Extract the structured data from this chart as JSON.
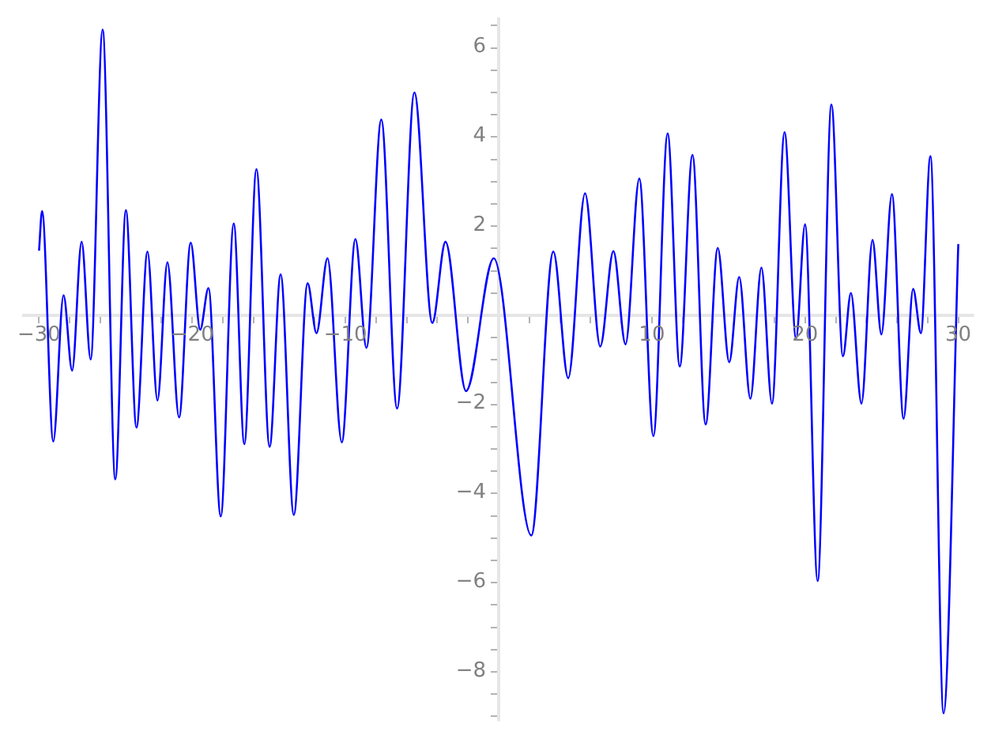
{
  "chart_data": {
    "type": "line",
    "color": "#0000ff",
    "marker": "none",
    "line_style": "solid",
    "grid": false,
    "legend": false,
    "xlim": [
      -31,
      31
    ],
    "ylim": [
      -9.1,
      6.65
    ],
    "xticks": [
      {
        "value": -30,
        "label": "−30"
      },
      {
        "value": -28,
        "label": null
      },
      {
        "value": -26,
        "label": null
      },
      {
        "value": -24,
        "label": null
      },
      {
        "value": -22,
        "label": null
      },
      {
        "value": -20,
        "label": "−20"
      },
      {
        "value": -18,
        "label": null
      },
      {
        "value": -16,
        "label": null
      },
      {
        "value": -14,
        "label": null
      },
      {
        "value": -12,
        "label": null
      },
      {
        "value": -10,
        "label": "−10"
      },
      {
        "value": -8,
        "label": null
      },
      {
        "value": -6,
        "label": null
      },
      {
        "value": -4,
        "label": null
      },
      {
        "value": -2,
        "label": null
      },
      {
        "value": 0,
        "label": null
      },
      {
        "value": 2,
        "label": null
      },
      {
        "value": 4,
        "label": null
      },
      {
        "value": 6,
        "label": null
      },
      {
        "value": 8,
        "label": null
      },
      {
        "value": 10,
        "label": "10"
      },
      {
        "value": 12,
        "label": null
      },
      {
        "value": 14,
        "label": null
      },
      {
        "value": 16,
        "label": null
      },
      {
        "value": 18,
        "label": null
      },
      {
        "value": 20,
        "label": "20"
      },
      {
        "value": 22,
        "label": null
      },
      {
        "value": 24,
        "label": null
      },
      {
        "value": 26,
        "label": null
      },
      {
        "value": 28,
        "label": null
      },
      {
        "value": 30,
        "label": "30"
      }
    ],
    "yticks": [
      {
        "value": -9,
        "label": null
      },
      {
        "value": -8.5,
        "label": null
      },
      {
        "value": -8,
        "label": "−8"
      },
      {
        "value": -7.5,
        "label": null
      },
      {
        "value": -7,
        "label": null
      },
      {
        "value": -6.5,
        "label": null
      },
      {
        "value": -6,
        "label": "−6"
      },
      {
        "value": -5.5,
        "label": null
      },
      {
        "value": -5,
        "label": null
      },
      {
        "value": -4.5,
        "label": null
      },
      {
        "value": -4,
        "label": "−4"
      },
      {
        "value": -3.5,
        "label": null
      },
      {
        "value": -3,
        "label": null
      },
      {
        "value": -2.5,
        "label": null
      },
      {
        "value": -2,
        "label": "−2"
      },
      {
        "value": -1.5,
        "label": null
      },
      {
        "value": -1,
        "label": null
      },
      {
        "value": -0.5,
        "label": null
      },
      {
        "value": 0,
        "label": null
      },
      {
        "value": 0.5,
        "label": null
      },
      {
        "value": 1,
        "label": null
      },
      {
        "value": 1.5,
        "label": null
      },
      {
        "value": 2,
        "label": "2"
      },
      {
        "value": 2.5,
        "label": null
      },
      {
        "value": 3,
        "label": null
      },
      {
        "value": 3.5,
        "label": null
      },
      {
        "value": 4,
        "label": "4"
      },
      {
        "value": 4.5,
        "label": null
      },
      {
        "value": 5,
        "label": null
      },
      {
        "value": 5.5,
        "label": null
      },
      {
        "value": 6,
        "label": "6"
      },
      {
        "value": 6.5,
        "label": null
      }
    ],
    "x": [
      -30,
      -29.8,
      -29.07,
      -28.4,
      -27.84,
      -27.22,
      -26.63,
      -25.85,
      -25.02,
      -24.33,
      -23.64,
      -22.92,
      -22.27,
      -21.62,
      -20.86,
      -20.1,
      -19.48,
      -18.94,
      -18.14,
      -17.29,
      -16.6,
      -15.81,
      -14.95,
      -14.23,
      -13.37,
      -12.47,
      -11.89,
      -11.17,
      -10.24,
      -9.35,
      -8.63,
      -7.66,
      -6.63,
      -5.5,
      -4.33,
      -3.47,
      -2.13,
      -0.32,
      2.13,
      3.57,
      4.54,
      5.64,
      6.63,
      7.49,
      8.28,
      9.18,
      10.1,
      11.03,
      11.82,
      12.65,
      13.51,
      14.3,
      15.05,
      15.7,
      16.43,
      17.15,
      17.84,
      18.66,
      19.41,
      20,
      20.82,
      21.72,
      22.47,
      22.99,
      23.68,
      24.4,
      24.98,
      25.67,
      26.43,
      27.05,
      27.56,
      28.18,
      29.04,
      30
    ],
    "values": [
      1.45,
      2.34,
      -2.83,
      0.45,
      -1.24,
      1.65,
      -0.99,
      6.41,
      -3.68,
      2.36,
      -2.52,
      1.43,
      -1.91,
      1.19,
      -2.29,
      1.63,
      -0.32,
      0.61,
      -4.51,
      2.06,
      -2.89,
      3.28,
      -2.95,
      0.92,
      -4.48,
      0.72,
      -0.4,
      1.28,
      -2.85,
      1.71,
      -0.73,
      4.39,
      -2.09,
      5,
      -0.17,
      1.65,
      -1.7,
      1.28,
      -4.94,
      1.43,
      -1.41,
      2.74,
      -0.7,
      1.44,
      -0.65,
      3.07,
      -2.71,
      4.08,
      -1.15,
      3.6,
      -2.45,
      1.51,
      -1.05,
      0.86,
      -1.87,
      1.07,
      -1.98,
      4.11,
      -0.52,
      2.04,
      -5.96,
      4.73,
      -0.92,
      0.5,
      -1.98,
      1.69,
      -0.43,
      2.72,
      -2.32,
      0.59,
      -0.4,
      3.57,
      -8.93,
      1.6
    ]
  }
}
